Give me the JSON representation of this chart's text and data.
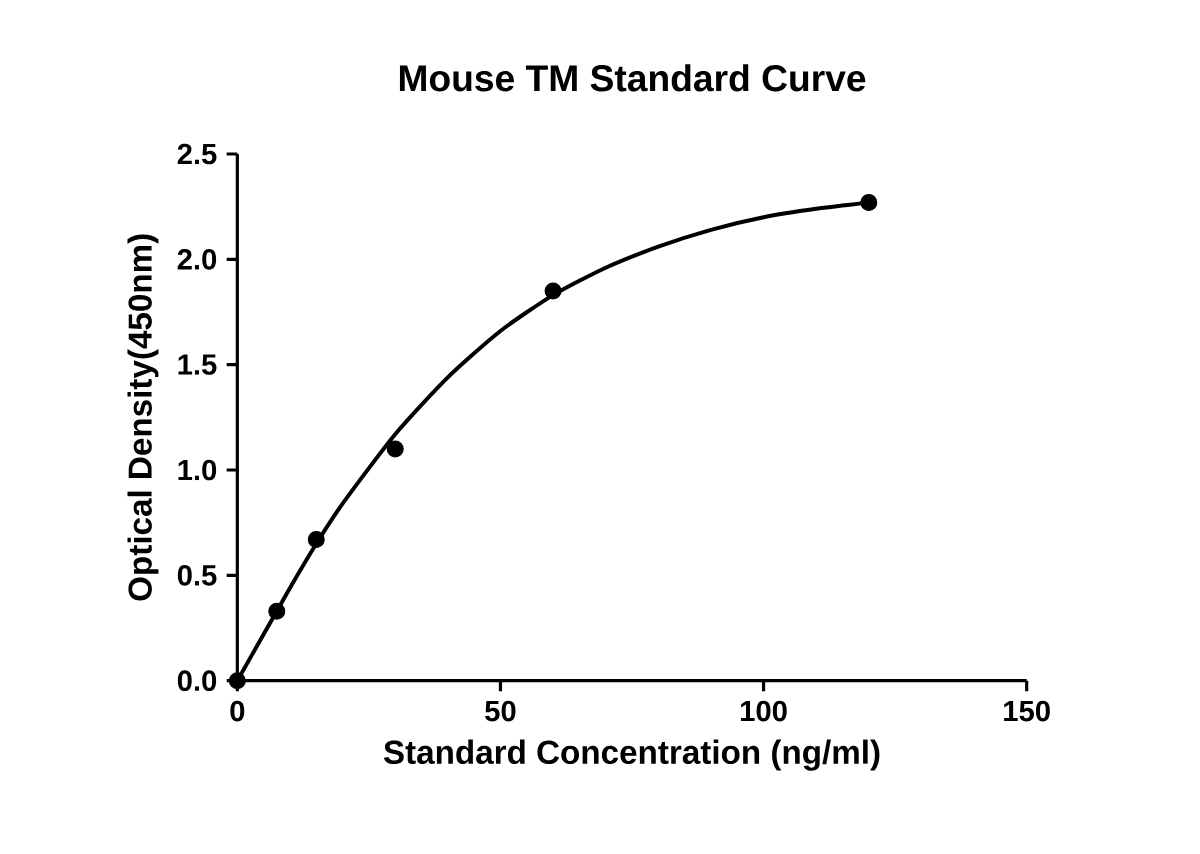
{
  "chart_data": {
    "type": "scatter",
    "title": "Mouse TM Standard Curve",
    "xlabel": "Standard Concentration (ng/ml)",
    "ylabel": "Optical Density(450nm)",
    "xlim": [
      0,
      150
    ],
    "xticks": [
      0,
      50,
      100,
      150
    ],
    "ylim": [
      0,
      2.5
    ],
    "yticks": [
      {
        "value": 0,
        "label": "0.0"
      },
      {
        "value": 0.5,
        "label": "0.5"
      },
      {
        "value": 1,
        "label": "1.0"
      },
      {
        "value": 1.5,
        "label": "1.5"
      },
      {
        "value": 2,
        "label": "2.0"
      },
      {
        "value": 2.5,
        "label": "2.5"
      }
    ],
    "grid": false,
    "series": [
      {
        "color": "#000000",
        "marker": "circle",
        "x": [
          0,
          7.5,
          15,
          30,
          60,
          120
        ],
        "values": [
          0,
          0.33,
          0.67,
          1.1,
          1.85,
          2.27
        ]
      },
      {
        "type": "line",
        "color": "#000000",
        "marker": "none",
        "line_style": "solid",
        "x": [
          0,
          5,
          10,
          15,
          20,
          30,
          40,
          50,
          60,
          70,
          80,
          90,
          100,
          110,
          120
        ],
        "values": [
          0,
          0.22,
          0.44,
          0.65,
          0.84,
          1.17,
          1.44,
          1.66,
          1.83,
          1.96,
          2.06,
          2.14,
          2.2,
          2.24,
          2.27
        ]
      }
    ]
  }
}
